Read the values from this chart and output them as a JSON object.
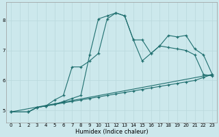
{
  "xlabel": "Humidex (Indice chaleur)",
  "bg_color": "#cce8ec",
  "grid_color": "#b8d8dc",
  "line_color": "#1e6e6e",
  "xlim": [
    -0.5,
    23.5
  ],
  "ylim": [
    4.6,
    8.6
  ],
  "yticks": [
    5,
    6,
    7,
    8
  ],
  "xticks": [
    0,
    1,
    2,
    3,
    4,
    5,
    6,
    7,
    8,
    9,
    10,
    11,
    12,
    13,
    14,
    15,
    16,
    17,
    18,
    19,
    20,
    21,
    22,
    23
  ],
  "line1_x": [
    0,
    2,
    3,
    4,
    5,
    6,
    7,
    8,
    9,
    10,
    11,
    12,
    13,
    14,
    15,
    16,
    17,
    18,
    19,
    20,
    21,
    22,
    23
  ],
  "line1_y": [
    4.95,
    4.95,
    5.1,
    5.15,
    5.2,
    5.25,
    5.3,
    5.35,
    5.4,
    5.45,
    5.5,
    5.55,
    5.6,
    5.65,
    5.7,
    5.75,
    5.8,
    5.85,
    5.9,
    5.95,
    6.0,
    6.1,
    6.2
  ],
  "line2_x": [
    0,
    2,
    3,
    4,
    5,
    6,
    7,
    8,
    9,
    10,
    11,
    12,
    13,
    14,
    15,
    16,
    17,
    18,
    19,
    20,
    21,
    22,
    23
  ],
  "line2_y": [
    4.95,
    4.95,
    5.1,
    5.15,
    5.2,
    5.3,
    5.4,
    5.5,
    6.85,
    8.05,
    8.15,
    8.25,
    8.15,
    7.35,
    6.65,
    6.9,
    7.15,
    7.1,
    7.05,
    7.0,
    6.85,
    6.2,
    6.15
  ],
  "line3_x": [
    0,
    2,
    3,
    4,
    5,
    6,
    7,
    8,
    9,
    10,
    11,
    12,
    13,
    14,
    15,
    16,
    17,
    18,
    19,
    20,
    21,
    22,
    23
  ],
  "line3_y": [
    4.95,
    4.95,
    5.1,
    5.15,
    5.35,
    5.5,
    6.45,
    6.45,
    6.65,
    6.9,
    8.05,
    8.25,
    8.15,
    7.35,
    7.35,
    6.9,
    7.15,
    7.5,
    7.45,
    7.5,
    7.05,
    6.85,
    6.2
  ],
  "line4_x": [
    0,
    23
  ],
  "line4_y": [
    4.95,
    6.2
  ]
}
